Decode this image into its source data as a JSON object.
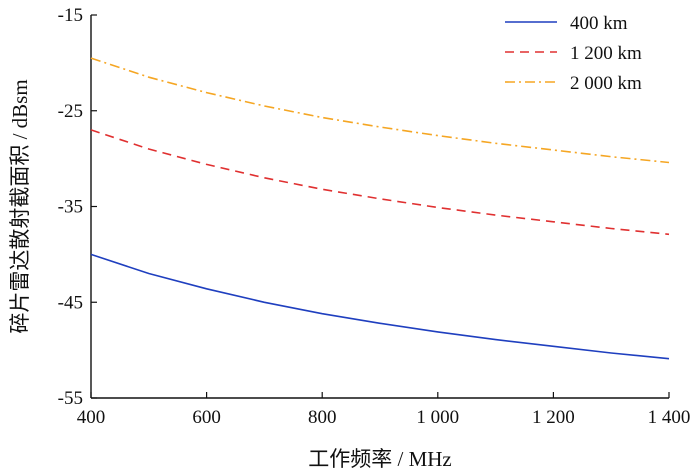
{
  "chart_data": {
    "type": "line",
    "xlabel": "工作频率 / MHz",
    "ylabel": "碎片雷达散射截面积 / dBsm",
    "xlim": [
      400,
      1400
    ],
    "ylim": [
      -55,
      -15
    ],
    "xticks": [
      400,
      600,
      800,
      1000,
      1200,
      1400
    ],
    "xtick_labels": [
      "400",
      "600",
      "800",
      "1 000",
      "1 200",
      "1 400"
    ],
    "yticks": [
      -15,
      -25,
      -35,
      -45,
      -55
    ],
    "ytick_labels": [
      "-15",
      "-25",
      "-35",
      "-45",
      "-55"
    ],
    "grid": false,
    "legend_position": "top-right",
    "x": [
      400,
      500,
      600,
      700,
      800,
      900,
      1000,
      1100,
      1200,
      1300,
      1400
    ],
    "series": [
      {
        "name": "400 km",
        "color": "#1f3fbf",
        "dash": "solid",
        "values": [
          -40.0,
          -42.0,
          -43.6,
          -45.0,
          -46.2,
          -47.2,
          -48.1,
          -48.9,
          -49.6,
          -50.3,
          -50.9
        ]
      },
      {
        "name": "1 200 km",
        "color": "#e03030",
        "dash": "dashed",
        "values": [
          -27.0,
          -29.0,
          -30.6,
          -32.0,
          -33.2,
          -34.2,
          -35.1,
          -35.9,
          -36.6,
          -37.3,
          -37.9
        ]
      },
      {
        "name": "2 000 km",
        "color": "#f5a623",
        "dash": "dashdot",
        "values": [
          -19.5,
          -21.5,
          -23.1,
          -24.5,
          -25.7,
          -26.7,
          -27.6,
          -28.4,
          -29.1,
          -29.8,
          -30.4
        ]
      }
    ]
  }
}
